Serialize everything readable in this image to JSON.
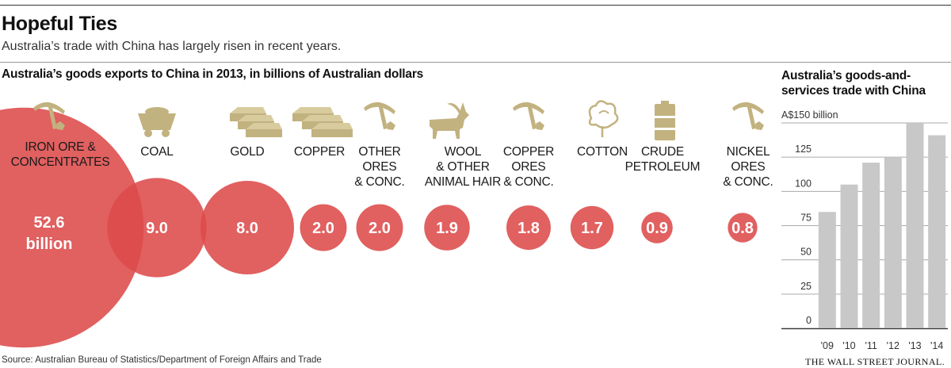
{
  "title": "Hopeful Ties",
  "subtitle": "Australia’s trade with China has largely risen in recent years.",
  "source": "Source: Australian Bureau of Statistics/Department of Foreign Affairs and Trade",
  "credit": "THE WALL STREET JOURNAL.",
  "colors": {
    "bubble": "#dd4a4a",
    "bar": "#c8c8c8",
    "icon": "#c2b280"
  },
  "chart_data": [
    {
      "type": "bubble",
      "title": "Australia’s goods exports to China in 2013, in billions of Australian dollars",
      "unit": "billion",
      "items": [
        {
          "label_lines": [
            "IRON ORE &",
            "CONCENTRATES"
          ],
          "value": 52.6,
          "display": "52.6",
          "icon": "pickaxe-icon"
        },
        {
          "label_lines": [
            "COAL"
          ],
          "value": 9.0,
          "display": "9.0",
          "icon": "coal-cart-icon"
        },
        {
          "label_lines": [
            "GOLD"
          ],
          "value": 8.0,
          "display": "8.0",
          "icon": "gold-bars-icon"
        },
        {
          "label_lines": [
            "COPPER"
          ],
          "value": 2.0,
          "display": "2.0",
          "icon": "copper-bars-icon"
        },
        {
          "label_lines": [
            "OTHER",
            "ORES",
            "& CONC."
          ],
          "value": 2.0,
          "display": "2.0",
          "icon": "pickaxe-icon"
        },
        {
          "label_lines": [
            "WOOL",
            "& OTHER",
            "ANIMAL HAIR"
          ],
          "value": 1.9,
          "display": "1.9",
          "icon": "goat-icon"
        },
        {
          "label_lines": [
            "COPPER",
            "ORES",
            "& CONC."
          ],
          "value": 1.8,
          "display": "1.8",
          "icon": "pickaxe-icon"
        },
        {
          "label_lines": [
            "COTTON"
          ],
          "value": 1.7,
          "display": "1.7",
          "icon": "cotton-icon"
        },
        {
          "label_lines": [
            "CRUDE",
            "PETROLEUM"
          ],
          "value": 0.9,
          "display": "0.9",
          "icon": "oil-barrel-icon"
        },
        {
          "label_lines": [
            "NICKEL",
            "ORES",
            "& CONC."
          ],
          "value": 0.8,
          "display": "0.8",
          "icon": "pickaxe-icon"
        }
      ]
    },
    {
      "type": "bar",
      "title": "Australia’s goods-and-services trade with China",
      "categories": [
        "'09",
        "'10",
        "'11",
        "'12",
        "'13",
        "'14"
      ],
      "values": [
        85,
        105,
        121,
        125,
        150,
        141
      ],
      "ylim": [
        0,
        150
      ],
      "yticks": [
        0,
        25,
        50,
        75,
        100,
        125,
        150
      ],
      "ytick_labels": [
        "0",
        "25",
        "50",
        "75",
        "100",
        "125",
        "A$150 billion"
      ],
      "grid": true
    }
  ]
}
